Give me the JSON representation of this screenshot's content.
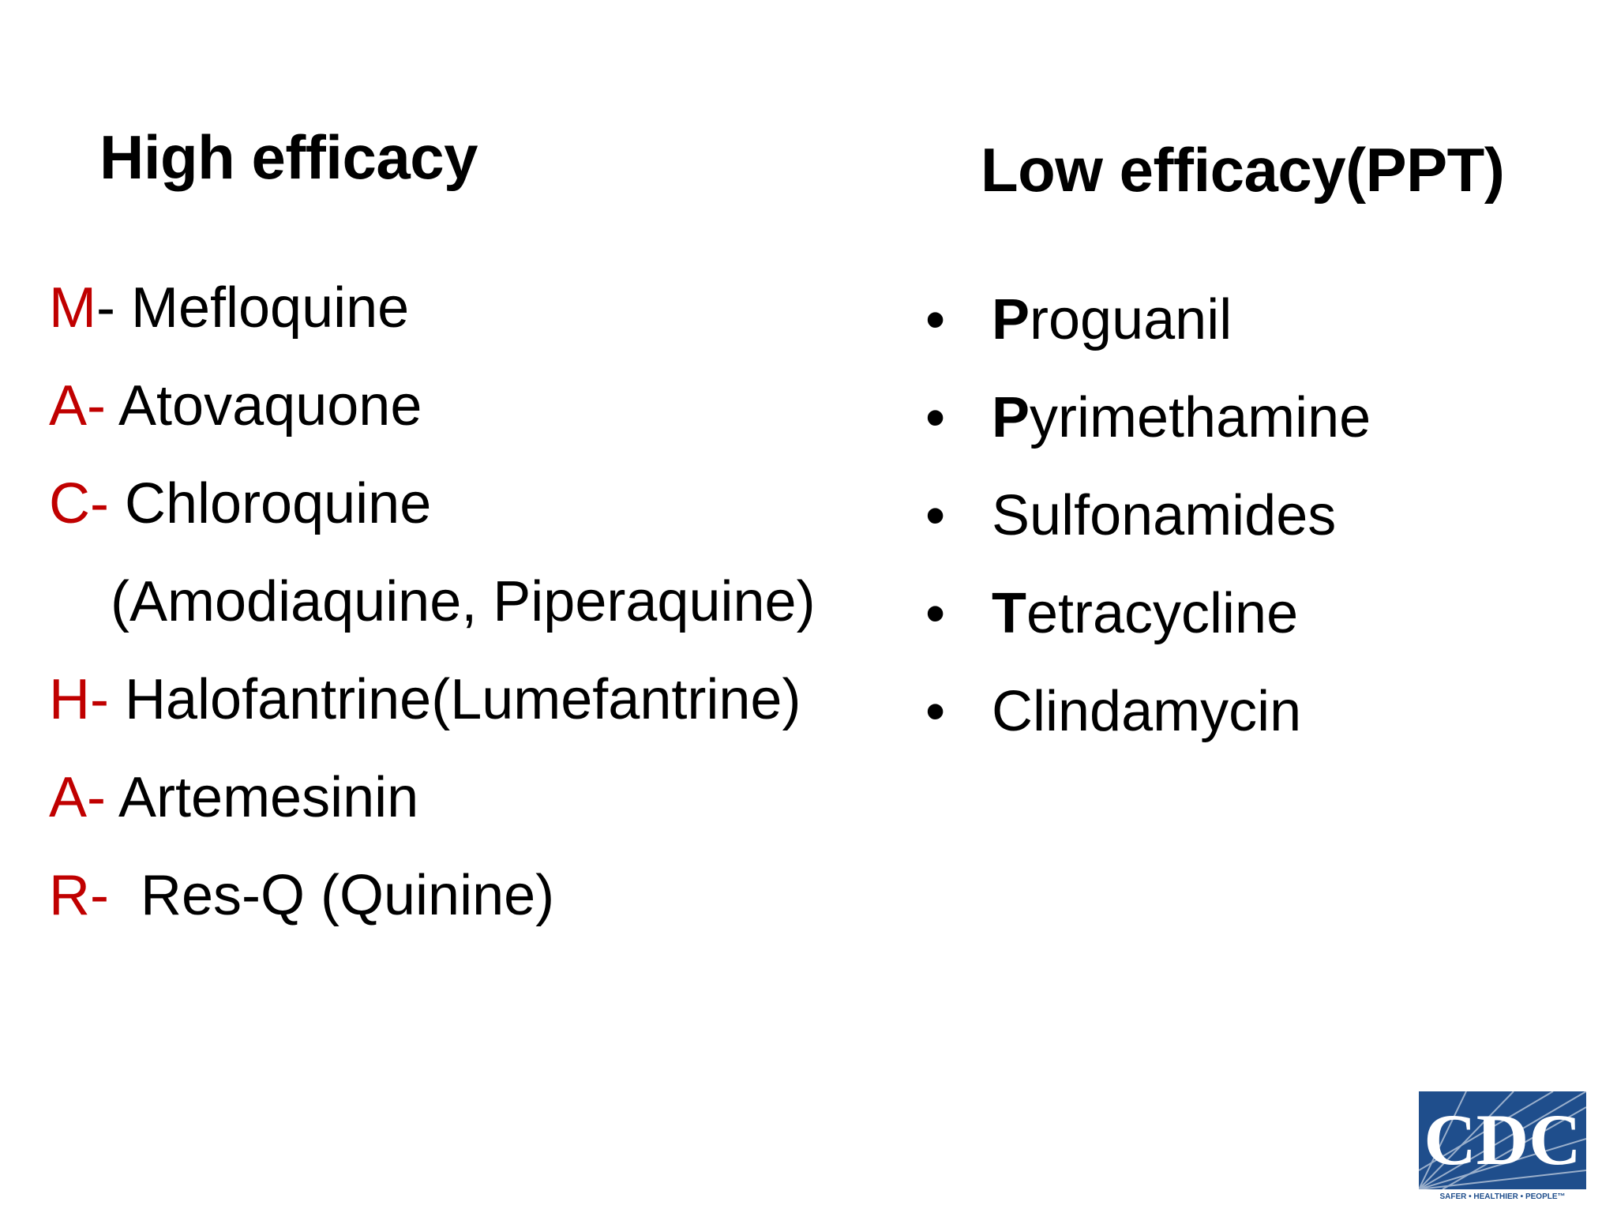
{
  "slide": {
    "left_heading": "High efficacy",
    "right_heading": "Low efficacy(PPT)",
    "left_items": [
      {
        "letter": "M",
        "rest": "- Mefloquine"
      },
      {
        "letter": "A-",
        "rest": " Atovaquone"
      },
      {
        "letter": "C-",
        "rest": " Chloroquine"
      },
      {
        "letter": "",
        "rest": "(Amodiaquine, Piperaquine)"
      },
      {
        "letter": "H-",
        "rest": " Halofantrine(Lumefantrine)"
      },
      {
        "letter": "A-",
        "rest": " Artemesinin"
      },
      {
        "letter": "R-",
        "rest": "  Res-Q (Quinine)"
      }
    ],
    "right_items": [
      {
        "bullet": "•",
        "first": "P",
        "rest": "roguanil",
        "first_bold": true
      },
      {
        "bullet": "•",
        "first": "P",
        "rest": "yrimethamine",
        "first_bold": true
      },
      {
        "bullet": "•",
        "first": "S",
        "rest": "ulfonamides",
        "first_bold": false
      },
      {
        "bullet": "•",
        "first": "T",
        "rest": "etracycline",
        "first_bold": true
      },
      {
        "bullet": "•",
        "first": "C",
        "rest": "lindamycin",
        "first_bold": false
      }
    ],
    "logo": {
      "text": "CDC",
      "tagline": "SAFER • HEALTHIER • PEOPLE™",
      "icon": "cdc-logo-icon"
    },
    "colors": {
      "mnemonic": "#c00000",
      "text": "#000000",
      "logo_blue": "#1f4e8c"
    }
  }
}
